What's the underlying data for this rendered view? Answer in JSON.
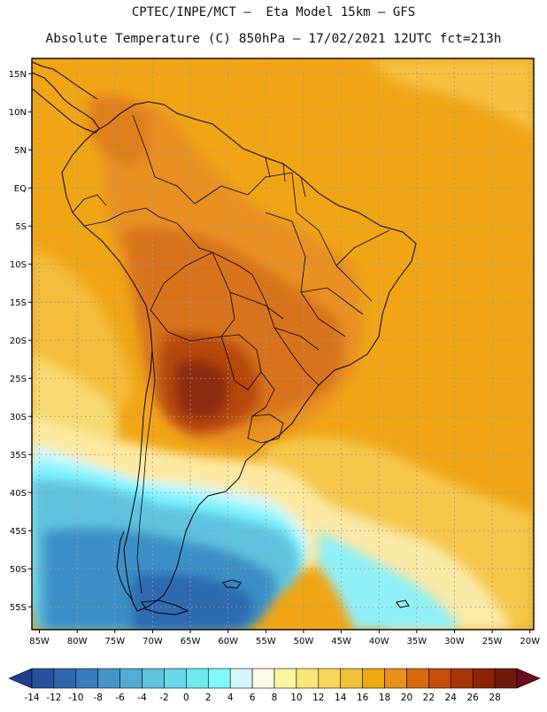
{
  "header": {
    "line1": "CPTEC/INPE/MCT –  Eta Model 15km – GFS",
    "line2": "Absolute Temperature (C) 850hPa – 17/02/2021 12UTC fct=213h"
  },
  "map": {
    "lat_labels": [
      "15N",
      "10N",
      "5N",
      "EQ",
      "5S",
      "10S",
      "15S",
      "20S",
      "25S",
      "30S",
      "35S",
      "40S",
      "45S",
      "50S",
      "55S"
    ],
    "lat_values": [
      15,
      10,
      5,
      0,
      -5,
      -10,
      -15,
      -20,
      -25,
      -30,
      -35,
      -40,
      -45,
      -50,
      -55
    ],
    "lon_labels": [
      "85W",
      "80W",
      "75W",
      "70W",
      "65W",
      "60W",
      "55W",
      "50W",
      "45W",
      "40W",
      "35W",
      "30W",
      "25W",
      "20W"
    ],
    "lon_values": [
      -85,
      -80,
      -75,
      -70,
      -65,
      -60,
      -55,
      -50,
      -45,
      -40,
      -35,
      -30,
      -25,
      -20
    ],
    "lon_range": [
      -86,
      -19.5
    ],
    "lat_range": [
      -58,
      17
    ]
  },
  "colorbar": {
    "labels": [
      "-14",
      "-12",
      "-10",
      "-8",
      "-6",
      "-4",
      "-2",
      "0",
      "2",
      "4",
      "6",
      "8",
      "10",
      "12",
      "14",
      "16",
      "18",
      "20",
      "22",
      "24",
      "26",
      "28"
    ],
    "colors": [
      "#1f3f8f",
      "#24529e",
      "#2e67ad",
      "#3a7dbd",
      "#4595c9",
      "#52acd6",
      "#5ec3df",
      "#6ad8e8",
      "#6fe9f0",
      "#7ff8ff",
      "#d4f7fb",
      "#fff9e6",
      "#fdf6a0",
      "#fbe57a",
      "#f8d55c",
      "#f2c13a",
      "#f0aa10",
      "#e88f1c",
      "#d86a0c",
      "#c44e08",
      "#a83604",
      "#8c2404",
      "#6e1a08",
      "#5a0e18"
    ],
    "left_end_color": "#1f3f8f",
    "right_end_color": "#6a0a20"
  },
  "colors": {
    "coast": "#000000",
    "grid": "#9a9a9a"
  }
}
